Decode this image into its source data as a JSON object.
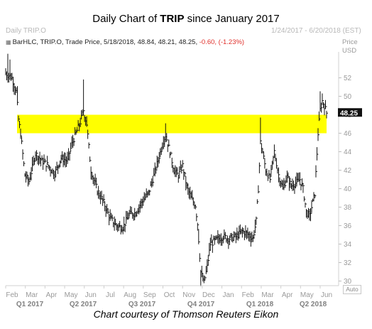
{
  "header": {
    "title_prefix": "Daily Chart of ",
    "title_ticker": "TRIP",
    "title_suffix": " since January 2017",
    "series_name": "Daily TRIP.O",
    "date_range": "1/24/2017 - 6/20/2018 (EST)",
    "price_label": "Price",
    "currency_label": "USD",
    "auto_label": "Auto"
  },
  "legend": {
    "icon_name": "barhlc-icon",
    "label": "BarHLC, TRIP.O, Trade Price, 5/18/2018, 48.84, 48.21, 48.25,",
    "change": "-0.60, (-1.23%)"
  },
  "caption": "Chart courtesy of Thomson Reuters Eikon",
  "colors": {
    "bars": "#111111",
    "highlight": "#ffff00",
    "negative": "#e0302b",
    "axis_text": "#9a9a9a",
    "last_price_box": "#111111"
  },
  "chart_data": {
    "type": "bar",
    "style": "ohlc-high-low-close",
    "ylim": [
      29.5,
      54.5
    ],
    "y_ticks": [
      30,
      32,
      34,
      36,
      38,
      40,
      42,
      44,
      46,
      48,
      50,
      52
    ],
    "highlight_band": [
      46,
      48
    ],
    "last_price": "48.25",
    "x_month_labels": [
      "Feb",
      "Mar",
      "Apr",
      "May",
      "Jun",
      "Jul",
      "Aug",
      "Sep",
      "Oct",
      "Nov",
      "Dec",
      "Jan",
      "Feb",
      "Mar",
      "Apr",
      "May",
      "Jun"
    ],
    "x_quarter_labels": [
      "Q1 2017",
      "Q2 2017",
      "Q3 2017",
      "Q4 2017",
      "Q1 2018",
      "Q2 2018"
    ],
    "price_path": [
      [
        0,
        52.5
      ],
      [
        6,
        52.0
      ],
      [
        10,
        50.5
      ],
      [
        12,
        47.5
      ],
      [
        14,
        46.0
      ],
      [
        18,
        41.5
      ],
      [
        22,
        40.8
      ],
      [
        28,
        43.8
      ],
      [
        34,
        43.0
      ],
      [
        40,
        42.5
      ],
      [
        46,
        41.6
      ],
      [
        52,
        43.3
      ],
      [
        58,
        43.0
      ],
      [
        62,
        44.8
      ],
      [
        66,
        46.0
      ],
      [
        70,
        47.2
      ],
      [
        73,
        48.5
      ],
      [
        76,
        47.0
      ],
      [
        80,
        42.0
      ],
      [
        86,
        39.8
      ],
      [
        92,
        38.5
      ],
      [
        98,
        36.8
      ],
      [
        104,
        36.0
      ],
      [
        110,
        35.8
      ],
      [
        116,
        37.2
      ],
      [
        122,
        37.4
      ],
      [
        128,
        38.6
      ],
      [
        134,
        39.5
      ],
      [
        140,
        41.8
      ],
      [
        144,
        43.5
      ],
      [
        148,
        45.2
      ],
      [
        150,
        45.8
      ],
      [
        154,
        44.0
      ],
      [
        158,
        42.0
      ],
      [
        162,
        41.4
      ],
      [
        166,
        42.5
      ],
      [
        170,
        40.2
      ],
      [
        174,
        39.0
      ],
      [
        178,
        38.2
      ],
      [
        180,
        36.2
      ],
      [
        183,
        31.0
      ],
      [
        186,
        29.8
      ],
      [
        189,
        31.5
      ],
      [
        192,
        34.0
      ],
      [
        198,
        34.5
      ],
      [
        204,
        34.8
      ],
      [
        210,
        34.6
      ],
      [
        216,
        34.8
      ],
      [
        222,
        35.4
      ],
      [
        228,
        35.0
      ],
      [
        232,
        34.6
      ],
      [
        235,
        36.5
      ],
      [
        237,
        40.0
      ],
      [
        239,
        45.0
      ],
      [
        241,
        44.0
      ],
      [
        244,
        42.0
      ],
      [
        248,
        41.0
      ],
      [
        252,
        44.0
      ],
      [
        256,
        41.5
      ],
      [
        260,
        40.0
      ],
      [
        264,
        41.3
      ],
      [
        268,
        40.3
      ],
      [
        272,
        40.6
      ],
      [
        276,
        41.0
      ],
      [
        279,
        40.0
      ],
      [
        282,
        37.5
      ],
      [
        285,
        37.0
      ],
      [
        288,
        38.5
      ],
      [
        290,
        39.5
      ],
      [
        293,
        46.0
      ],
      [
        295,
        48.5
      ],
      [
        297,
        49.5
      ],
      [
        299,
        49.0
      ],
      [
        301,
        48.2
      ]
    ]
  }
}
